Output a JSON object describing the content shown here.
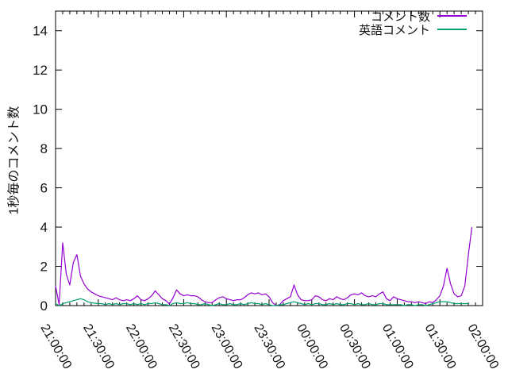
{
  "window": {
    "background": "#ffffff"
  },
  "legend": {
    "position": "top-right-inside"
  },
  "chart_data": {
    "type": "line",
    "title": "",
    "xlabel": "",
    "ylabel": "1秒毎のコメント数",
    "grid": false,
    "legend_position": "top-right-inside",
    "axis_color": "#000000",
    "x_unit": "time HH:MM:SS (minutes measured from 21:00:00)",
    "x_range_minutes": [
      0,
      300
    ],
    "x_tick_interval_minutes": 30,
    "x_minor_tick_interval_minutes": 5,
    "x_tick_labels": [
      "21:00:00",
      "21:30:00",
      "22:00:00",
      "22:30:00",
      "23:00:00",
      "23:30:00",
      "00:00:00",
      "00:30:00",
      "01:00:00",
      "01:30:00",
      "02:00:00"
    ],
    "y_range": [
      0,
      15
    ],
    "y_tick_values": [
      0,
      2,
      4,
      6,
      8,
      10,
      12,
      14
    ],
    "y_tick_labels": [
      "0",
      "2",
      "4",
      "6",
      "8",
      "10",
      "12",
      "14"
    ],
    "series": [
      {
        "name": "コメント数",
        "color": "#9400d3",
        "start_minute": 0,
        "step_minutes": 2.5,
        "values": [
          1,
          0.05,
          3.2,
          1.6,
          1.05,
          2.2,
          2.6,
          1.5,
          1.1,
          0.85,
          0.7,
          0.6,
          0.5,
          0.45,
          0.4,
          0.35,
          0.3,
          0.4,
          0.3,
          0.25,
          0.3,
          0.25,
          0.35,
          0.5,
          0.3,
          0.25,
          0.35,
          0.5,
          0.75,
          0.55,
          0.35,
          0.25,
          0.08,
          0.4,
          0.8,
          0.6,
          0.5,
          0.55,
          0.5,
          0.5,
          0.45,
          0.3,
          0.2,
          0.15,
          0.15,
          0.3,
          0.4,
          0.45,
          0.35,
          0.3,
          0.25,
          0.3,
          0.3,
          0.4,
          0.55,
          0.65,
          0.6,
          0.65,
          0.55,
          0.6,
          0.45,
          0.15,
          0,
          0.05,
          0.25,
          0.35,
          0.45,
          1.05,
          0.55,
          0.3,
          0.25,
          0.25,
          0.3,
          0.5,
          0.45,
          0.3,
          0.25,
          0.35,
          0.3,
          0.45,
          0.35,
          0.3,
          0.4,
          0.55,
          0.6,
          0.55,
          0.65,
          0.5,
          0.45,
          0.5,
          0.45,
          0.6,
          0.7,
          0.35,
          0.25,
          0.45,
          0.35,
          0.3,
          0.25,
          0.2,
          0.2,
          0.15,
          0.2,
          0.15,
          0.1,
          0.2,
          0.15,
          0.3,
          0.5,
          1,
          1.9,
          1.1,
          0.6,
          0.45,
          0.5,
          1,
          2.6,
          4
        ]
      },
      {
        "name": "英語コメント",
        "color": "#009e73",
        "start_minute": 0,
        "step_minutes": 2.5,
        "values": [
          0.1,
          0,
          0.1,
          0.15,
          0.2,
          0.25,
          0.3,
          0.35,
          0.3,
          0.2,
          0.15,
          0.12,
          0.1,
          0.1,
          0.05,
          0.1,
          0.05,
          0.1,
          0.05,
          0.1,
          0.1,
          0.05,
          0.1,
          0.05,
          0.1,
          0.05,
          0.1,
          0.1,
          0.15,
          0.1,
          0.05,
          0.05,
          0,
          0.1,
          0.15,
          0.1,
          0.1,
          0.15,
          0.1,
          0.1,
          0.05,
          0.05,
          0.1,
          0.05,
          0,
          0.05,
          0.1,
          0.05,
          0.05,
          0.1,
          0.05,
          0.05,
          0.1,
          0.05,
          0.1,
          0.15,
          0.1,
          0.1,
          0.05,
          0.1,
          0.05,
          0,
          0,
          0.05,
          0.05,
          0.1,
          0.15,
          0.2,
          0.15,
          0.1,
          0.05,
          0.1,
          0.05,
          0.1,
          0.1,
          0.05,
          0.05,
          0.1,
          0.05,
          0.1,
          0.05,
          0.05,
          0.1,
          0.1,
          0.05,
          0.1,
          0.05,
          0.05,
          0.1,
          0.05,
          0.05,
          0.1,
          0.1,
          0.05,
          0.05,
          0.05,
          0.05,
          0.05,
          0,
          0.05,
          0.05,
          0,
          0.05,
          0.05,
          0,
          0.05,
          0.1,
          0.15,
          0.2,
          0.2,
          0.2,
          0.15,
          0.1,
          0.1,
          0.1,
          0.1,
          0.1
        ]
      }
    ]
  }
}
